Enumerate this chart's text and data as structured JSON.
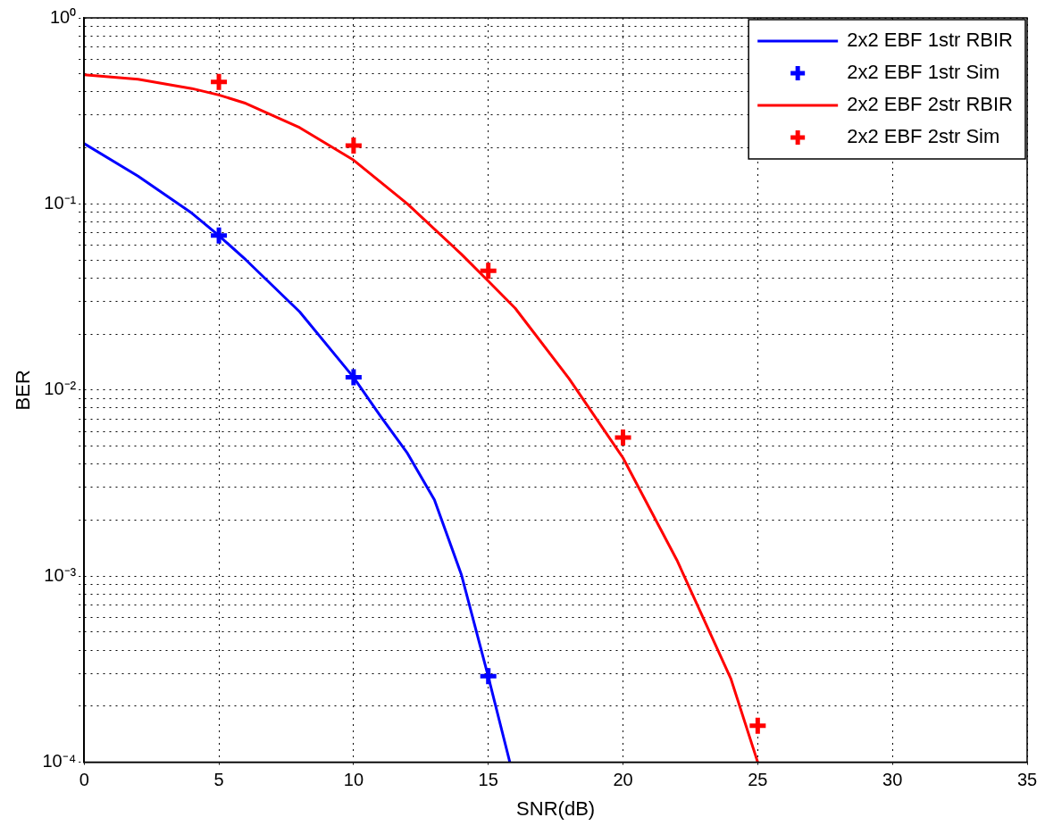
{
  "chart_data": {
    "type": "line",
    "xlabel": "SNR(dB)",
    "ylabel": "BER",
    "log": "y",
    "grid": true,
    "legend": "top right",
    "xlim": [
      0,
      35
    ],
    "xticks": [
      0,
      5,
      10,
      15,
      20,
      25,
      30,
      35
    ],
    "ylim": [
      0.0001,
      1
    ],
    "yticks": [
      {
        "value": 0.0001,
        "label": "10⁻⁴"
      },
      {
        "value": 0.0002,
        "label": null
      },
      {
        "value": 0.0003,
        "label": null
      },
      {
        "value": 0.0004,
        "label": null
      },
      {
        "value": 0.0005,
        "label": null
      },
      {
        "value": 0.0006,
        "label": null
      },
      {
        "value": 0.0007,
        "label": null
      },
      {
        "value": 0.0008,
        "label": null
      },
      {
        "value": 0.0009,
        "label": null
      },
      {
        "value": 0.001,
        "label": "10⁻³"
      },
      {
        "value": 0.002,
        "label": null
      },
      {
        "value": 0.003,
        "label": null
      },
      {
        "value": 0.004,
        "label": null
      },
      {
        "value": 0.005,
        "label": null
      },
      {
        "value": 0.006,
        "label": null
      },
      {
        "value": 0.007,
        "label": null
      },
      {
        "value": 0.008,
        "label": null
      },
      {
        "value": 0.009,
        "label": null
      },
      {
        "value": 0.01,
        "label": "10⁻²"
      },
      {
        "value": 0.02,
        "label": null
      },
      {
        "value": 0.03,
        "label": null
      },
      {
        "value": 0.04,
        "label": null
      },
      {
        "value": 0.05,
        "label": null
      },
      {
        "value": 0.06,
        "label": null
      },
      {
        "value": 0.07,
        "label": null
      },
      {
        "value": 0.08,
        "label": null
      },
      {
        "value": 0.09,
        "label": null
      },
      {
        "value": 0.1,
        "label": "10⁻¹"
      },
      {
        "value": 0.2,
        "label": null
      },
      {
        "value": 0.3,
        "label": null
      },
      {
        "value": 0.4,
        "label": null
      },
      {
        "value": 0.5,
        "label": null
      },
      {
        "value": 0.6,
        "label": null
      },
      {
        "value": 0.7,
        "label": null
      },
      {
        "value": 0.8,
        "label": null
      },
      {
        "value": 0.9,
        "label": null
      },
      {
        "value": 1,
        "label": "10⁰"
      }
    ],
    "series": [
      {
        "name": "2x2 EBF 1str RBIR",
        "type": "line",
        "marker": "none",
        "line_style": "solid",
        "color": "#0000ff",
        "x": [
          0,
          2,
          4,
          5,
          6,
          8,
          10,
          11,
          12,
          13,
          14,
          15,
          15.8
        ],
        "values": [
          0.211,
          0.141,
          0.0891,
          0.0676,
          0.0501,
          0.0263,
          0.0117,
          0.00724,
          0.00457,
          0.00257,
          0.00102,
          0.000288,
          0.0001
        ]
      },
      {
        "name": "2x2 EBF 1str Sim",
        "type": "scatter",
        "marker": "cross",
        "color": "#0000ff",
        "x": [
          5,
          10,
          15
        ],
        "values": [
          0.0676,
          0.0117,
          0.00029
        ]
      },
      {
        "name": "2x2 EBF 2str RBIR",
        "type": "line",
        "marker": "none",
        "line_style": "solid",
        "color": "#ff0000",
        "x": [
          0,
          2,
          4,
          5,
          6,
          8,
          10,
          12,
          14,
          15,
          16,
          18,
          20,
          22,
          24,
          25
        ],
        "values": [
          0.495,
          0.468,
          0.417,
          0.385,
          0.347,
          0.257,
          0.172,
          0.1,
          0.0537,
          0.0385,
          0.0275,
          0.0115,
          0.00432,
          0.00122,
          0.000282,
          0.0001
        ]
      },
      {
        "name": "2x2 EBF 2str Sim",
        "type": "scatter",
        "marker": "cross",
        "color": "#ff0000",
        "x": [
          5,
          10,
          15,
          20,
          25
        ],
        "values": [
          0.452,
          0.206,
          0.0437,
          0.00556,
          0.000157
        ]
      }
    ]
  }
}
